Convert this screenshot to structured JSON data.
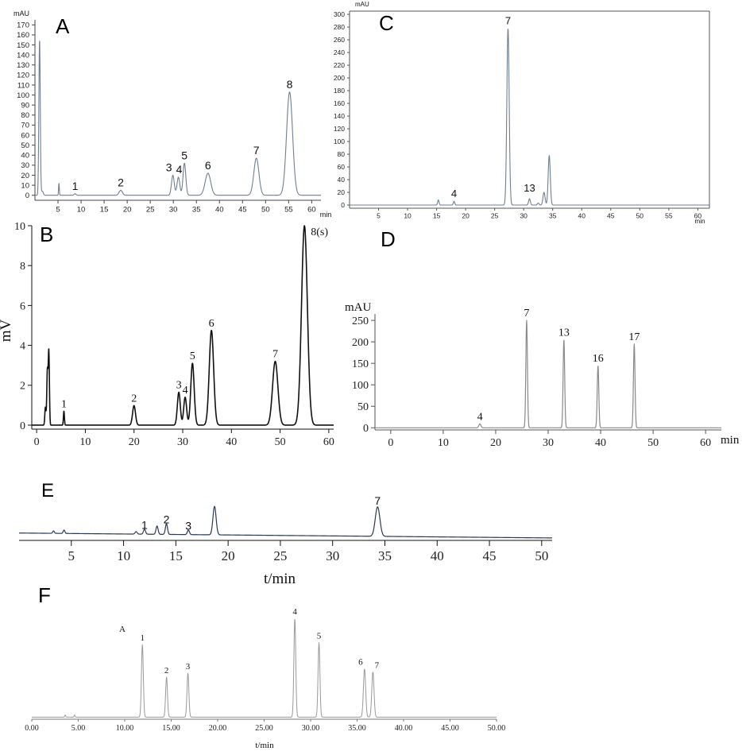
{
  "chart_data": [
    {
      "type": "line",
      "panel_label": "A",
      "ylabel": "mAU",
      "xlabel": "min",
      "xlim": [
        0,
        62
      ],
      "ylim": [
        -5,
        175
      ],
      "x_ticks": [
        5,
        10,
        15,
        20,
        25,
        30,
        35,
        40,
        45,
        50,
        55,
        60
      ],
      "x_tick_labels": [
        "5",
        "10",
        "15",
        "20",
        "25",
        "30",
        "35",
        "40",
        "45",
        "50",
        "55",
        "60"
      ],
      "y_ticks": [
        0,
        10,
        20,
        30,
        40,
        50,
        60,
        70,
        80,
        90,
        100,
        110,
        120,
        130,
        140,
        150,
        160,
        170
      ],
      "y_tick_labels": [
        "0",
        "10",
        "20",
        "30",
        "40",
        "50",
        "60",
        "70",
        "80",
        "90",
        "100",
        "110",
        "120",
        "130",
        "140",
        "150",
        "160",
        "170"
      ],
      "line_color": "#6e7f94",
      "peaks": [
        {
          "x": 1.0,
          "y": 155,
          "w": 0.15
        },
        {
          "x": 1.6,
          "y": 4,
          "w": 0.2
        },
        {
          "x": 5.2,
          "y": 12,
          "w": 0.08
        },
        {
          "x": 8.7,
          "y": 1.5,
          "w": 0.2,
          "label": "1"
        },
        {
          "x": 18.6,
          "y": 5,
          "w": 0.35,
          "label": "2"
        },
        {
          "x": 29.9,
          "y": 20,
          "w": 0.3,
          "label": "3"
        },
        {
          "x": 31.1,
          "y": 18,
          "w": 0.3,
          "label": "4"
        },
        {
          "x": 32.4,
          "y": 32,
          "w": 0.3,
          "label": "5"
        },
        {
          "x": 37.5,
          "y": 22,
          "w": 0.6,
          "label": "6"
        },
        {
          "x": 48.0,
          "y": 37,
          "w": 0.55,
          "label": "7"
        },
        {
          "x": 55.2,
          "y": 103,
          "w": 0.65,
          "label": "8"
        }
      ]
    },
    {
      "type": "line",
      "panel_label": "B",
      "ylabel": "mV",
      "xlabel": "",
      "xlim": [
        -1,
        61
      ],
      "ylim": [
        -0.2,
        10
      ],
      "x_ticks": [
        0,
        10,
        20,
        30,
        40,
        50,
        60
      ],
      "x_tick_labels": [
        "0",
        "10",
        "20",
        "30",
        "40",
        "50",
        "60"
      ],
      "y_ticks": [
        0,
        2,
        4,
        6,
        8,
        10
      ],
      "y_tick_labels": [
        "0",
        "2",
        "4",
        "6",
        "8",
        "10"
      ],
      "line_color": "#111111",
      "peaks": [
        {
          "x": 1.8,
          "y": 0.9,
          "w": 0.12
        },
        {
          "x": 2.2,
          "y": 2.7,
          "w": 0.12
        },
        {
          "x": 2.5,
          "y": 3.7,
          "w": 0.12
        },
        {
          "x": 5.6,
          "y": 0.7,
          "w": 0.1,
          "label": "1"
        },
        {
          "x": 20.0,
          "y": 0.98,
          "w": 0.3,
          "label": "2"
        },
        {
          "x": 29.2,
          "y": 1.65,
          "w": 0.3,
          "label": "3"
        },
        {
          "x": 30.5,
          "y": 1.4,
          "w": 0.3,
          "label": "4"
        },
        {
          "x": 32.0,
          "y": 3.1,
          "w": 0.35,
          "label": "5"
        },
        {
          "x": 35.9,
          "y": 4.75,
          "w": 0.45,
          "label": "6"
        },
        {
          "x": 49.0,
          "y": 3.2,
          "w": 0.55,
          "label": "7"
        },
        {
          "x": 55.0,
          "y": 10.0,
          "w": 0.6,
          "label": "8(s)"
        }
      ]
    },
    {
      "type": "line",
      "panel_label": "C",
      "ylabel": "mAU",
      "xlabel": "min",
      "xlim": [
        0,
        62
      ],
      "ylim": [
        -5,
        305
      ],
      "x_ticks": [
        5,
        10,
        15,
        20,
        25,
        30,
        35,
        40,
        45,
        50,
        55,
        60
      ],
      "x_tick_labels": [
        "5",
        "10",
        "15",
        "20",
        "25",
        "30",
        "35",
        "40",
        "45",
        "50",
        "55",
        "60"
      ],
      "y_ticks": [
        0,
        20,
        40,
        60,
        80,
        100,
        120,
        140,
        160,
        180,
        200,
        220,
        240,
        260,
        280,
        300
      ],
      "y_tick_labels": [
        "0",
        "20",
        "40",
        "60",
        "80",
        "100",
        "120",
        "140",
        "160",
        "180",
        "200",
        "220",
        "240",
        "260",
        "280",
        "300"
      ],
      "line_color": "#6e7f94",
      "peaks": [
        {
          "x": 15.3,
          "y": 8,
          "w": 0.12
        },
        {
          "x": 18.0,
          "y": 6,
          "w": 0.12,
          "label": "4"
        },
        {
          "x": 27.3,
          "y": 278,
          "w": 0.2,
          "label": "7"
        },
        {
          "x": 31.0,
          "y": 10,
          "w": 0.15,
          "label": "13"
        },
        {
          "x": 32.5,
          "y": 3,
          "w": 0.15
        },
        {
          "x": 33.5,
          "y": 20,
          "w": 0.18
        },
        {
          "x": 34.4,
          "y": 78,
          "w": 0.18
        }
      ]
    },
    {
      "type": "line",
      "panel_label": "D",
      "ylabel": "mAU",
      "xlabel": "min",
      "xlim": [
        -3,
        63
      ],
      "ylim": [
        -5,
        265
      ],
      "x_ticks": [
        0,
        10,
        20,
        30,
        40,
        50,
        60
      ],
      "x_tick_labels": [
        "0",
        "10",
        "20",
        "30",
        "40",
        "50",
        "60"
      ],
      "y_ticks": [
        0,
        50,
        100,
        150,
        200,
        250
      ],
      "y_tick_labels": [
        "0",
        "50",
        "100",
        "150",
        "200",
        "250"
      ],
      "line_color": "#8a8a8a",
      "peaks": [
        {
          "x": 17.0,
          "y": 9,
          "w": 0.2,
          "label": "4"
        },
        {
          "x": 25.9,
          "y": 250,
          "w": 0.15,
          "label": "7"
        },
        {
          "x": 33.0,
          "y": 205,
          "w": 0.15,
          "label": "13"
        },
        {
          "x": 39.5,
          "y": 145,
          "w": 0.15,
          "label": "16"
        },
        {
          "x": 46.4,
          "y": 195,
          "w": 0.15,
          "label": "17"
        }
      ]
    },
    {
      "type": "line",
      "panel_label": "E",
      "ylabel": "",
      "xlabel": "t/min",
      "xlim": [
        0,
        51
      ],
      "ylim": [
        -5,
        100
      ],
      "x_ticks": [
        5,
        10,
        15,
        20,
        25,
        30,
        35,
        40,
        45,
        50
      ],
      "x_tick_labels": [
        "5",
        "10",
        "15",
        "20",
        "25",
        "30",
        "35",
        "40",
        "45",
        "50"
      ],
      "y_ticks": [],
      "y_tick_labels": [],
      "line_color": "#2a3a55",
      "peaks": [
        {
          "x": 3.3,
          "y": 5,
          "w": 0.08
        },
        {
          "x": 4.3,
          "y": 7,
          "w": 0.08
        },
        {
          "x": 11.2,
          "y": 5,
          "w": 0.1
        },
        {
          "x": 12.0,
          "y": 10,
          "w": 0.1,
          "label": "1"
        },
        {
          "x": 13.2,
          "y": 17,
          "w": 0.1
        },
        {
          "x": 14.1,
          "y": 22,
          "w": 0.1,
          "label": "2"
        },
        {
          "x": 16.2,
          "y": 9,
          "w": 0.1,
          "label": "3"
        },
        {
          "x": 18.7,
          "y": 58,
          "w": 0.15
        },
        {
          "x": 34.3,
          "y": 60,
          "w": 0.22,
          "label": "7"
        }
      ]
    },
    {
      "type": "line",
      "panel_label": "F",
      "inner_label": "A",
      "ylabel": "",
      "xlabel": "t/min",
      "xlim": [
        0,
        50
      ],
      "ylim": [
        -2,
        100
      ],
      "x_ticks": [
        0,
        5,
        10,
        15,
        20,
        25,
        30,
        35,
        40,
        45,
        50
      ],
      "x_tick_labels": [
        "0.00",
        "5.00",
        "10.00",
        "15.00",
        "20.00",
        "25.00",
        "30.00",
        "35.00",
        "40.00",
        "45.00",
        "50.00"
      ],
      "y_ticks": [],
      "y_tick_labels": [],
      "line_color": "#9a9a9a",
      "peaks": [
        {
          "x": 3.6,
          "y": 2,
          "w": 0.05
        },
        {
          "x": 4.6,
          "y": 2,
          "w": 0.05
        },
        {
          "x": 11.9,
          "y": 69,
          "w": 0.1,
          "label": "1"
        },
        {
          "x": 14.5,
          "y": 38,
          "w": 0.1,
          "label": "2"
        },
        {
          "x": 16.8,
          "y": 42,
          "w": 0.1,
          "label": "3"
        },
        {
          "x": 28.3,
          "y": 94,
          "w": 0.1,
          "label": "4"
        },
        {
          "x": 30.9,
          "y": 71,
          "w": 0.1,
          "label": "5"
        },
        {
          "x": 35.8,
          "y": 46,
          "w": 0.12,
          "label": "6"
        },
        {
          "x": 36.7,
          "y": 43,
          "w": 0.12,
          "label": "7"
        }
      ]
    }
  ]
}
